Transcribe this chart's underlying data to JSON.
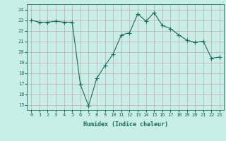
{
  "x": [
    0,
    1,
    2,
    3,
    4,
    5,
    6,
    7,
    8,
    9,
    10,
    11,
    12,
    13,
    14,
    15,
    16,
    17,
    18,
    19,
    20,
    21,
    22,
    23
  ],
  "y": [
    23.0,
    22.8,
    22.8,
    22.9,
    22.8,
    22.8,
    16.9,
    14.9,
    17.5,
    18.7,
    19.8,
    21.6,
    21.8,
    23.6,
    22.9,
    23.7,
    22.5,
    22.2,
    21.6,
    21.1,
    20.9,
    21.0,
    19.4,
    19.5
  ],
  "xlabel": "Humidex (Indice chaleur)",
  "xlim": [
    -0.5,
    23.5
  ],
  "ylim": [
    14.5,
    24.5
  ],
  "yticks": [
    15,
    16,
    17,
    18,
    19,
    20,
    21,
    22,
    23,
    24
  ],
  "xticks": [
    0,
    1,
    2,
    3,
    4,
    5,
    6,
    7,
    8,
    9,
    10,
    11,
    12,
    13,
    14,
    15,
    16,
    17,
    18,
    19,
    20,
    21,
    22,
    23
  ],
  "line_color": "#1a6b5a",
  "marker": "+",
  "marker_size": 4.0,
  "bg_color": "#c8eee8",
  "grid_color": "#c8a8a8",
  "label_color": "#1a6b5a",
  "tick_color": "#1a6b5a",
  "tick_fontsize": 5.0,
  "xlabel_fontsize": 6.0
}
